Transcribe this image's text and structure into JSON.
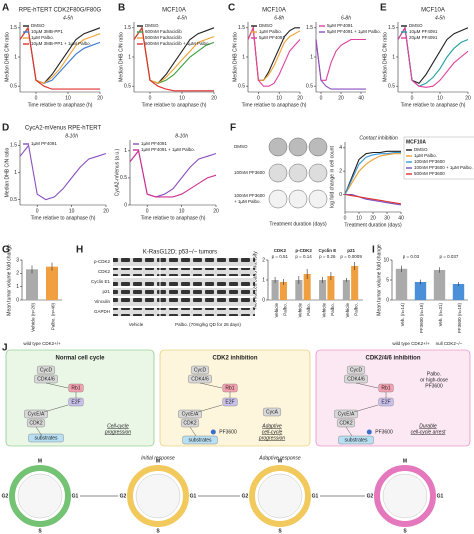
{
  "panel_labels": [
    "A",
    "B",
    "C",
    "D",
    "E",
    "F",
    "G",
    "H",
    "I",
    "J"
  ],
  "charts": [
    {
      "type": "line",
      "title": "RPE-hTERT CDK2F80G/F80G",
      "annotations": [
        "4-5h"
      ],
      "xlabel": "Time relative to anaphase (h)",
      "ylabel": "Median DHB C/N ratio",
      "x": [
        -5,
        -2.5,
        0,
        2.5,
        5,
        7.5,
        10,
        12.5,
        15,
        17.5,
        20
      ],
      "xlim": [
        -5,
        20
      ],
      "xticks": [
        0,
        10,
        20
      ],
      "ylim": [
        0.4,
        1.6
      ],
      "yticks": [
        0.5,
        1,
        1.5
      ],
      "series": [
        {
          "name": "DMSO",
          "color": "#222222",
          "values": [
            1.3,
            1.5,
            0.6,
            0.55,
            0.7,
            0.9,
            1.1,
            1.3,
            1.4,
            1.45,
            1.5
          ]
        },
        {
          "name": "10µM 3MB-PP1",
          "color": "#3a7bd5",
          "values": [
            1.3,
            1.5,
            0.6,
            0.55,
            0.6,
            0.75,
            0.9,
            1.05,
            1.15,
            1.2,
            1.25
          ]
        },
        {
          "name": "1µM Palbo.",
          "color": "#f0a030",
          "values": [
            1.3,
            1.5,
            0.6,
            0.55,
            0.65,
            0.8,
            1.0,
            1.2,
            1.3,
            1.35,
            1.4
          ]
        },
        {
          "name": "10µM 3MB-PP1 + 1µM Palbo.",
          "color": "#e03030",
          "values": [
            1.3,
            1.5,
            0.6,
            0.5,
            0.45,
            0.45,
            0.45,
            0.45,
            0.45,
            0.45,
            0.45
          ]
        }
      ]
    },
    {
      "type": "line",
      "title": "MCF10A",
      "annotations": [
        "4-5h"
      ],
      "xlabel": "Time relative to anaphase (h)",
      "ylabel": "Median DHB C/N ratio",
      "x": [
        -5,
        -2.5,
        0,
        2.5,
        5,
        7.5,
        10,
        12.5,
        15,
        17.5,
        20
      ],
      "xlim": [
        -5,
        20
      ],
      "xticks": [
        0,
        10,
        20
      ],
      "ylim": [
        0.4,
        1.6
      ],
      "yticks": [
        0.5,
        1,
        1.5
      ],
      "series": [
        {
          "name": "DMSO",
          "color": "#222222",
          "values": [
            1.3,
            1.5,
            0.6,
            0.55,
            0.7,
            0.9,
            1.1,
            1.3,
            1.4,
            1.45,
            1.5
          ]
        },
        {
          "name": "600nM Fadraciclib",
          "color": "#3aa040",
          "values": [
            1.3,
            1.5,
            0.6,
            0.55,
            0.6,
            0.7,
            0.85,
            1.0,
            1.1,
            1.2,
            1.25
          ]
        },
        {
          "name": "500nM Fadraciclib",
          "color": "#f0a030",
          "values": [
            1.3,
            1.5,
            0.6,
            0.55,
            0.65,
            0.8,
            0.95,
            1.1,
            1.25,
            1.3,
            1.35
          ]
        },
        {
          "name": "600nM Fadraciclib + 1µM Palbo.",
          "color": "#e03030",
          "values": [
            1.3,
            1.5,
            0.6,
            0.5,
            0.45,
            0.42,
            0.42,
            0.42,
            0.42,
            0.42,
            0.42
          ]
        }
      ]
    },
    {
      "type": "line",
      "title": "MCF10A",
      "annotations": [
        "6-8h"
      ],
      "xlabel": "Time relative to anaphase (h)",
      "ylabel": "Median DHB C/N ratio",
      "x": [
        -5,
        -2.5,
        0,
        2.5,
        5,
        7.5,
        10,
        12.5,
        15,
        17.5,
        20
      ],
      "xlim": [
        -5,
        20
      ],
      "xticks": [
        0,
        10,
        20
      ],
      "ylim": [
        0.4,
        1.6
      ],
      "yticks": [
        0.5,
        1,
        1.5
      ],
      "series": [
        {
          "name": "DMSO",
          "color": "#222222",
          "values": [
            1.3,
            1.5,
            0.6,
            0.6,
            0.75,
            0.95,
            1.15,
            1.35,
            1.45,
            1.5,
            1.5
          ]
        },
        {
          "name": "1µM Palbo.",
          "color": "#f0a030",
          "values": [
            1.3,
            1.5,
            0.6,
            0.6,
            0.7,
            0.85,
            1.05,
            1.25,
            1.35,
            1.4,
            1.45
          ]
        },
        {
          "name": "5µM PF4091",
          "color": "#e040a0",
          "values": [
            1.3,
            1.5,
            0.6,
            0.5,
            0.5,
            0.55,
            0.7,
            0.9,
            1.1,
            1.2,
            1.3
          ]
        }
      ]
    },
    {
      "type": "line",
      "annotations": [
        "6-8h"
      ],
      "x": [
        -5,
        0,
        5,
        10,
        15,
        20,
        25,
        30,
        35,
        40,
        45
      ],
      "xlim": [
        -5,
        45
      ],
      "xticks": [
        0,
        20,
        40
      ],
      "ylim": [
        0.4,
        1.6
      ],
      "yticks": [
        0.5,
        1,
        1.5
      ],
      "series": [
        {
          "name": "5µM PF4091",
          "color": "#e040a0",
          "values": [
            1.3,
            0.6,
            0.6,
            0.9,
            1.1,
            1.2,
            1.25,
            1.3,
            1.3,
            1.3,
            1.3
          ]
        },
        {
          "name": "5µM PF4091 + 1µM Palbo.",
          "color": "#8a4fc0",
          "values": [
            1.3,
            0.6,
            0.5,
            0.45,
            0.45,
            0.45,
            0.45,
            0.45,
            0.45,
            0.45,
            0.45
          ]
        }
      ]
    },
    {
      "type": "line",
      "title": "MCF10A",
      "annotations": [
        "4-5h"
      ],
      "xlabel": "Time relative to anaphase (h)",
      "ylabel": "Median DHB C/N ratio",
      "x": [
        -5,
        -2.5,
        0,
        2.5,
        5,
        7.5,
        10,
        12.5,
        15,
        17.5,
        20
      ],
      "xlim": [
        -5,
        20
      ],
      "xticks": [
        0,
        10,
        20
      ],
      "ylim": [
        0.4,
        1.6
      ],
      "yticks": [
        0.5,
        1,
        1.5
      ],
      "series": [
        {
          "name": "DMSO",
          "color": "#222222",
          "values": [
            1.3,
            1.5,
            0.6,
            0.55,
            0.7,
            0.9,
            1.1,
            1.3,
            1.4,
            1.45,
            1.5
          ]
        },
        {
          "name": "10µM PF4091",
          "color": "#20a0a0",
          "values": [
            1.3,
            1.5,
            0.6,
            0.5,
            0.55,
            0.65,
            0.8,
            1.0,
            1.15,
            1.25,
            1.3
          ]
        },
        {
          "name": "20µM PF4091",
          "color": "#e040a0",
          "values": [
            1.3,
            1.5,
            0.6,
            0.5,
            0.48,
            0.5,
            0.6,
            0.75,
            0.9,
            1.0,
            1.1
          ]
        }
      ]
    },
    {
      "type": "line",
      "title": "CycA2-mVenus RPE-hTERT",
      "annotations": [
        "8-10h"
      ],
      "xlabel": "Time relative to anaphase (h)",
      "ylabel": "Median DHB C/N ratio",
      "x": [
        -5,
        -2.5,
        0,
        2.5,
        5,
        7.5,
        10,
        12.5,
        15,
        17.5,
        20
      ],
      "xlim": [
        -5,
        20
      ],
      "xticks": [
        0,
        10,
        20
      ],
      "ylim": [
        0.4,
        1.6
      ],
      "yticks": [
        0.5,
        1,
        1.5
      ],
      "series": [
        {
          "name": "1µM PF4091",
          "color": "#8a4fc0",
          "values": [
            1.3,
            1.5,
            0.6,
            0.5,
            0.55,
            0.7,
            0.9,
            1.1,
            1.25,
            1.3,
            1.35
          ]
        }
      ]
    },
    {
      "type": "line",
      "annotations": [
        "8-10h"
      ],
      "xlabel": "Time relative to anaphase (h)",
      "ylabel": "CycA2-mVenus (a.u.)",
      "x": [
        -5,
        -2.5,
        0,
        2.5,
        5,
        7.5,
        10,
        12.5,
        15,
        17.5,
        20
      ],
      "xlim": [
        -5,
        20
      ],
      "xticks": [
        0,
        10,
        20
      ],
      "ylim": [
        0,
        1.2
      ],
      "yticks": [
        0,
        0.5,
        1
      ],
      "series": [
        {
          "name": "1µM PF4091",
          "color": "#8a4fc0",
          "values": [
            0.8,
            1.0,
            0.2,
            0.15,
            0.2,
            0.3,
            0.5,
            0.7,
            0.85,
            0.9,
            0.95
          ]
        },
        {
          "name": "1µM PF4091 + 1µM Palbo.",
          "color": "#d03090",
          "values": [
            0.8,
            1.0,
            0.2,
            0.15,
            0.15,
            0.15,
            0.2,
            0.3,
            0.4,
            0.5,
            0.55
          ]
        }
      ]
    },
    {
      "type": "line",
      "annotations": [
        "Contact inhibition"
      ],
      "legend_title": "MCF10A",
      "xlabel": "Treatment duration (days)",
      "ylabel": "log fold change in cell count",
      "x": [
        0,
        5,
        10,
        15,
        20,
        25,
        30,
        35,
        40
      ],
      "xlim": [
        0,
        40
      ],
      "xticks": [
        0,
        10,
        20,
        30,
        40
      ],
      "ylim": [
        -1.5,
        4.5
      ],
      "yticks": [
        0,
        2,
        4
      ],
      "series": [
        {
          "name": "DMSO",
          "color": "#222222",
          "values": [
            0,
            1.5,
            3,
            3.5,
            3.6,
            3.6,
            3.7,
            3.7,
            3.7
          ]
        },
        {
          "name": "1µM Palbo.",
          "color": "#f0a030",
          "values": [
            0,
            1,
            2,
            2.6,
            3,
            3.3,
            3.4,
            3.5,
            3.5
          ]
        },
        {
          "name": "100nM PF3600",
          "color": "#3a9ad9",
          "values": [
            0,
            1.3,
            2.6,
            3.2,
            3.4,
            3.5,
            3.5,
            3.6,
            3.6
          ]
        },
        {
          "name": "100nM PF3600 + 1µM Palbo.",
          "color": "#7a50c0",
          "values": [
            0,
            0,
            -0.2,
            -0.4,
            -0.5,
            -0.6,
            -0.7,
            -0.8,
            -0.9
          ]
        },
        {
          "name": "500nM PF3600",
          "color": "#e03030",
          "values": [
            0,
            -0.1,
            -0.2,
            -0.3,
            -0.4,
            -0.5,
            -0.6,
            -0.7,
            -0.8
          ]
        }
      ]
    },
    {
      "type": "bar",
      "ylabel": "Mean tumor volume fold change",
      "xlabel": "wild type CDK2+/+",
      "categories": [
        "Vehicle (n=20)",
        "Palbo. (n=40)"
      ],
      "values": [
        2.3,
        2.5
      ],
      "errors": [
        0.3,
        0.3
      ],
      "colors": [
        "#aaaaaa",
        "#f0a040"
      ],
      "ylim": [
        0,
        3
      ],
      "yticks": [
        0,
        1,
        2,
        3
      ]
    },
    {
      "type": "bar",
      "ylabel": "Normalized band intensity",
      "categories": [
        "CDK2",
        "p-CDK2",
        "Cyclin E",
        "p21"
      ],
      "pvalues": [
        "p = 0.51",
        "p = 0.14",
        "p = 0.26",
        "p = 0.0009"
      ],
      "ylim": [
        0,
        2
      ],
      "yticks": [
        0,
        1,
        2
      ],
      "series": [
        {
          "name": "Vehicle",
          "color": "#aaaaaa",
          "values": [
            1,
            1,
            1,
            1
          ],
          "errors": [
            0.15,
            0.2,
            0.15,
            0.1
          ]
        },
        {
          "name": "Palbo.",
          "color": "#f0a040",
          "values": [
            0.9,
            1.3,
            1.2,
            1.7
          ],
          "errors": [
            0.15,
            0.25,
            0.2,
            0.2
          ]
        }
      ]
    },
    {
      "type": "bar",
      "ylabel": "Mean tumor volume fold change",
      "categories": [
        "Veh. (n=14)",
        "PF3600 (n=16)",
        "Veh. (n=31)",
        "PF3600 (n=18)"
      ],
      "group_labels": [
        "wild type CDK2+/+",
        "null CDK2−/−"
      ],
      "pvalues": [
        "p = 0.03",
        "p = 0.037"
      ],
      "values": [
        7.8,
        4.5,
        7.5,
        4
      ],
      "errors": [
        0.8,
        0.6,
        0.7,
        0.5
      ],
      "colors": [
        "#aaaaaa",
        "#4a90d9",
        "#aaaaaa",
        "#4a90d9"
      ],
      "ylim": [
        0,
        10
      ],
      "yticks": [
        0,
        5,
        10
      ]
    }
  ],
  "dishes": {
    "rows": [
      [
        "DMSO"
      ],
      [
        "100nM PF3600"
      ],
      [
        "100nM PF3600",
        "+ 1µM Palbo."
      ]
    ],
    "xlabel": "Treatment duration (days)"
  },
  "blot": {
    "title": "K-RasG12D; p53−/− tumors",
    "rows": [
      "p-CDK2",
      "CDK2",
      "Cyclin E1",
      "p21",
      "Vinculin",
      "GAPDH"
    ],
    "groups": [
      "Vehicle",
      "Palbo. (70mg/kg QD for 28 days)"
    ]
  },
  "diagram": {
    "panels": [
      {
        "title": "Normal cell cycle",
        "nodes": [
          "CycD",
          "CDK4/6",
          "Rb1",
          "E2F",
          "CycE/A",
          "CDK2",
          "substrates"
        ],
        "note": [
          "Cell-cycle",
          "progression"
        ]
      },
      {
        "title": "CDK2 inhibition",
        "nodes": [
          "CycD",
          "CDK4/6",
          "Rb1",
          "E2F",
          "CycA",
          "CycE/A",
          "CDK2",
          "PF3600",
          "substrates"
        ],
        "note": [
          "Adaptive",
          "cell-cycle",
          "progression"
        ]
      },
      {
        "title": "CDK2/4/6 inhibition",
        "nodes": [
          "CycD",
          "CDK4/6",
          "Rb1",
          "E2F",
          "CycE/A",
          "CDK2",
          "PF3600",
          "substrates"
        ],
        "inhibitor": [
          "Palbo.",
          "or high-dose",
          "PF3600"
        ],
        "note": [
          "Durable",
          "cell-cycle arrest"
        ]
      }
    ],
    "cycles": {
      "phases": [
        [
          "M",
          "G1",
          "S",
          "G2"
        ],
        [
          "M",
          "G1",
          "S",
          "G2"
        ],
        [
          "M",
          "G1",
          "S",
          "G2"
        ],
        [
          "M",
          "G1",
          "S",
          "G2"
        ]
      ],
      "labels": [
        "Initial response",
        "Adaptive response"
      ]
    }
  }
}
